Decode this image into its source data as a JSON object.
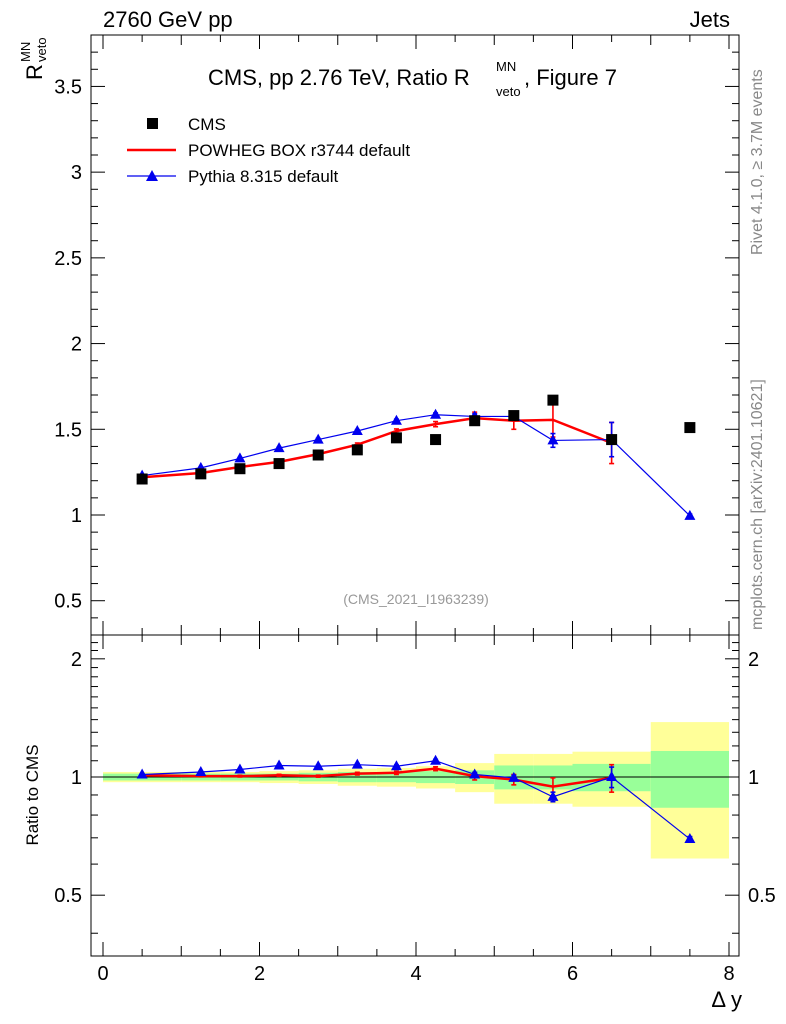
{
  "header": {
    "left": "2760 GeV pp",
    "right": "Jets"
  },
  "side_text": {
    "rivet": "Rivet 4.1.0, ≥ 3.7M events",
    "mcplots": "mcplots.cern.ch [arXiv:2401.10621]"
  },
  "colors": {
    "cms": "#000000",
    "powheg": "#ff0000",
    "pythia": "#0000ee",
    "band_inner": "#99ff99",
    "band_outer": "#ffff99"
  },
  "chart_data": {
    "type": "scatter",
    "title_parts": {
      "pre": "CMS, pp 2.76 TeV, Ratio R",
      "sup": "MN",
      "sub": "veto",
      "post": ", Figure 7"
    },
    "ylabel": {
      "main": "R",
      "sup": "MN",
      "sub": "veto"
    },
    "xlabel": "Δ y",
    "xlim": [
      0,
      8
    ],
    "ylim": [
      0.3,
      3.8
    ],
    "ratio_ylim": [
      0.35,
      2.3
    ],
    "ratio_ylabel": "Ratio to CMS",
    "watermark": "(CMS_2021_I1963239)",
    "x_ticks": [
      0,
      2,
      4,
      6,
      8
    ],
    "y_ticks": [
      0.5,
      1,
      1.5,
      2,
      2.5,
      3,
      3.5
    ],
    "ratio_ticks": [
      0.5,
      1,
      2
    ],
    "ratio_tick_labels": [
      "0.5",
      "1",
      "2"
    ],
    "legend": [
      {
        "key": "cms",
        "label": "CMS"
      },
      {
        "key": "powheg",
        "label": "POWHEG BOX r3744 default"
      },
      {
        "key": "pythia",
        "label": "Pythia 8.315 default"
      }
    ],
    "bins": [
      {
        "lo": 0.0,
        "hi": 1.0
      },
      {
        "lo": 1.0,
        "hi": 1.5
      },
      {
        "lo": 1.5,
        "hi": 2.0
      },
      {
        "lo": 2.0,
        "hi": 2.5
      },
      {
        "lo": 2.5,
        "hi": 3.0
      },
      {
        "lo": 3.0,
        "hi": 3.5
      },
      {
        "lo": 3.5,
        "hi": 4.0
      },
      {
        "lo": 4.0,
        "hi": 4.5
      },
      {
        "lo": 4.5,
        "hi": 5.0
      },
      {
        "lo": 5.0,
        "hi": 5.5
      },
      {
        "lo": 5.5,
        "hi": 6.0
      },
      {
        "lo": 6.0,
        "hi": 7.0
      },
      {
        "lo": 7.0,
        "hi": 8.0
      }
    ],
    "cms": {
      "x": [
        0.5,
        1.25,
        1.75,
        2.25,
        2.75,
        3.25,
        3.75,
        4.25,
        4.75,
        5.25,
        5.75,
        6.5,
        7.5
      ],
      "y": [
        1.21,
        1.24,
        1.27,
        1.3,
        1.35,
        1.38,
        1.45,
        1.44,
        1.55,
        1.58,
        1.67,
        1.44,
        1.51
      ]
    },
    "band": {
      "inner": [
        0.02,
        0.02,
        0.02,
        0.02,
        0.025,
        0.03,
        0.03,
        0.035,
        0.04,
        0.07,
        0.07,
        0.08,
        0.165
      ],
      "outer": [
        0.03,
        0.03,
        0.03,
        0.035,
        0.04,
        0.05,
        0.055,
        0.065,
        0.085,
        0.145,
        0.145,
        0.16,
        0.38
      ]
    },
    "series": [
      {
        "name": "POWHEG BOX r3744 default",
        "key": "powheg",
        "x": [
          0.5,
          1.25,
          1.75,
          2.25,
          2.75,
          3.25,
          3.75,
          4.25,
          4.75,
          5.25,
          5.75,
          6.5
        ],
        "y": [
          1.22,
          1.245,
          1.28,
          1.31,
          1.355,
          1.41,
          1.49,
          1.53,
          1.565,
          1.55,
          1.555,
          1.42
        ],
        "err": [
          0.005,
          0.005,
          0.006,
          0.007,
          0.008,
          0.01,
          0.012,
          0.015,
          0.035,
          0.05,
          0.1,
          0.12
        ],
        "ratio": [
          1.01,
          1.005,
          1.005,
          1.01,
          1.005,
          1.02,
          1.025,
          1.05,
          1.005,
          0.985,
          0.945,
          0.995
        ],
        "ratio_err": [
          0.004,
          0.004,
          0.005,
          0.006,
          0.006,
          0.008,
          0.01,
          0.012,
          0.022,
          0.03,
          0.05,
          0.08
        ]
      },
      {
        "name": "Pythia 8.315 default",
        "key": "pythia",
        "x": [
          0.5,
          1.25,
          1.75,
          2.25,
          2.75,
          3.25,
          3.75,
          4.25,
          4.75,
          5.25,
          5.75,
          6.5,
          7.5
        ],
        "y": [
          1.23,
          1.275,
          1.33,
          1.39,
          1.44,
          1.49,
          1.55,
          1.585,
          1.575,
          1.575,
          1.435,
          1.44,
          0.995
        ],
        "err": [
          0.004,
          0.004,
          0.005,
          0.006,
          0.007,
          0.008,
          0.009,
          0.01,
          0.015,
          0.02,
          0.04,
          0.1,
          0.01
        ],
        "ratio": [
          1.015,
          1.03,
          1.045,
          1.07,
          1.065,
          1.075,
          1.065,
          1.1,
          1.015,
          0.995,
          0.89,
          1.0,
          0.695
        ],
        "ratio_err": [
          0.004,
          0.004,
          0.005,
          0.006,
          0.006,
          0.007,
          0.008,
          0.009,
          0.012,
          0.015,
          0.025,
          0.06,
          0.01
        ]
      }
    ]
  }
}
